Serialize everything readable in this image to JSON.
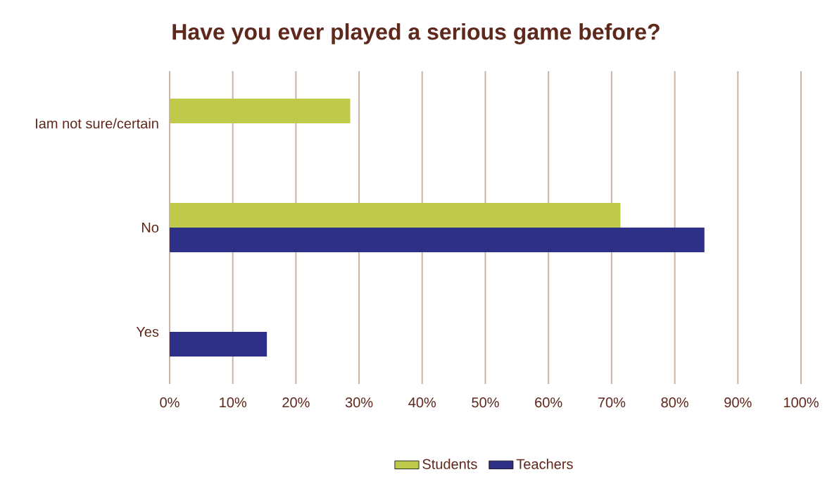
{
  "chart_data": {
    "type": "bar",
    "orientation": "horizontal",
    "title": "Have you ever played a serious game before?",
    "categories": [
      "Iam not sure/certain",
      "No",
      "Yes"
    ],
    "series": [
      {
        "name": "Students",
        "color": "#bfca4b",
        "values": [
          28.6,
          71.4,
          null
        ]
      },
      {
        "name": "Teachers",
        "color": "#2e3087",
        "values": [
          null,
          84.7,
          15.4
        ]
      }
    ],
    "xlim": [
      0,
      100
    ],
    "xticks": [
      {
        "value": 0,
        "label": "0%"
      },
      {
        "value": 10,
        "label": "10%"
      },
      {
        "value": 20,
        "label": "20%"
      },
      {
        "value": 30,
        "label": "30%"
      },
      {
        "value": 40,
        "label": "40%"
      },
      {
        "value": 50,
        "label": "50%"
      },
      {
        "value": 60,
        "label": "60%"
      },
      {
        "value": 70,
        "label": "70%"
      },
      {
        "value": 80,
        "label": "80%"
      },
      {
        "value": 90,
        "label": "90%"
      },
      {
        "value": 100,
        "label": "100%"
      }
    ],
    "grid": "x",
    "legend": "bottom"
  }
}
